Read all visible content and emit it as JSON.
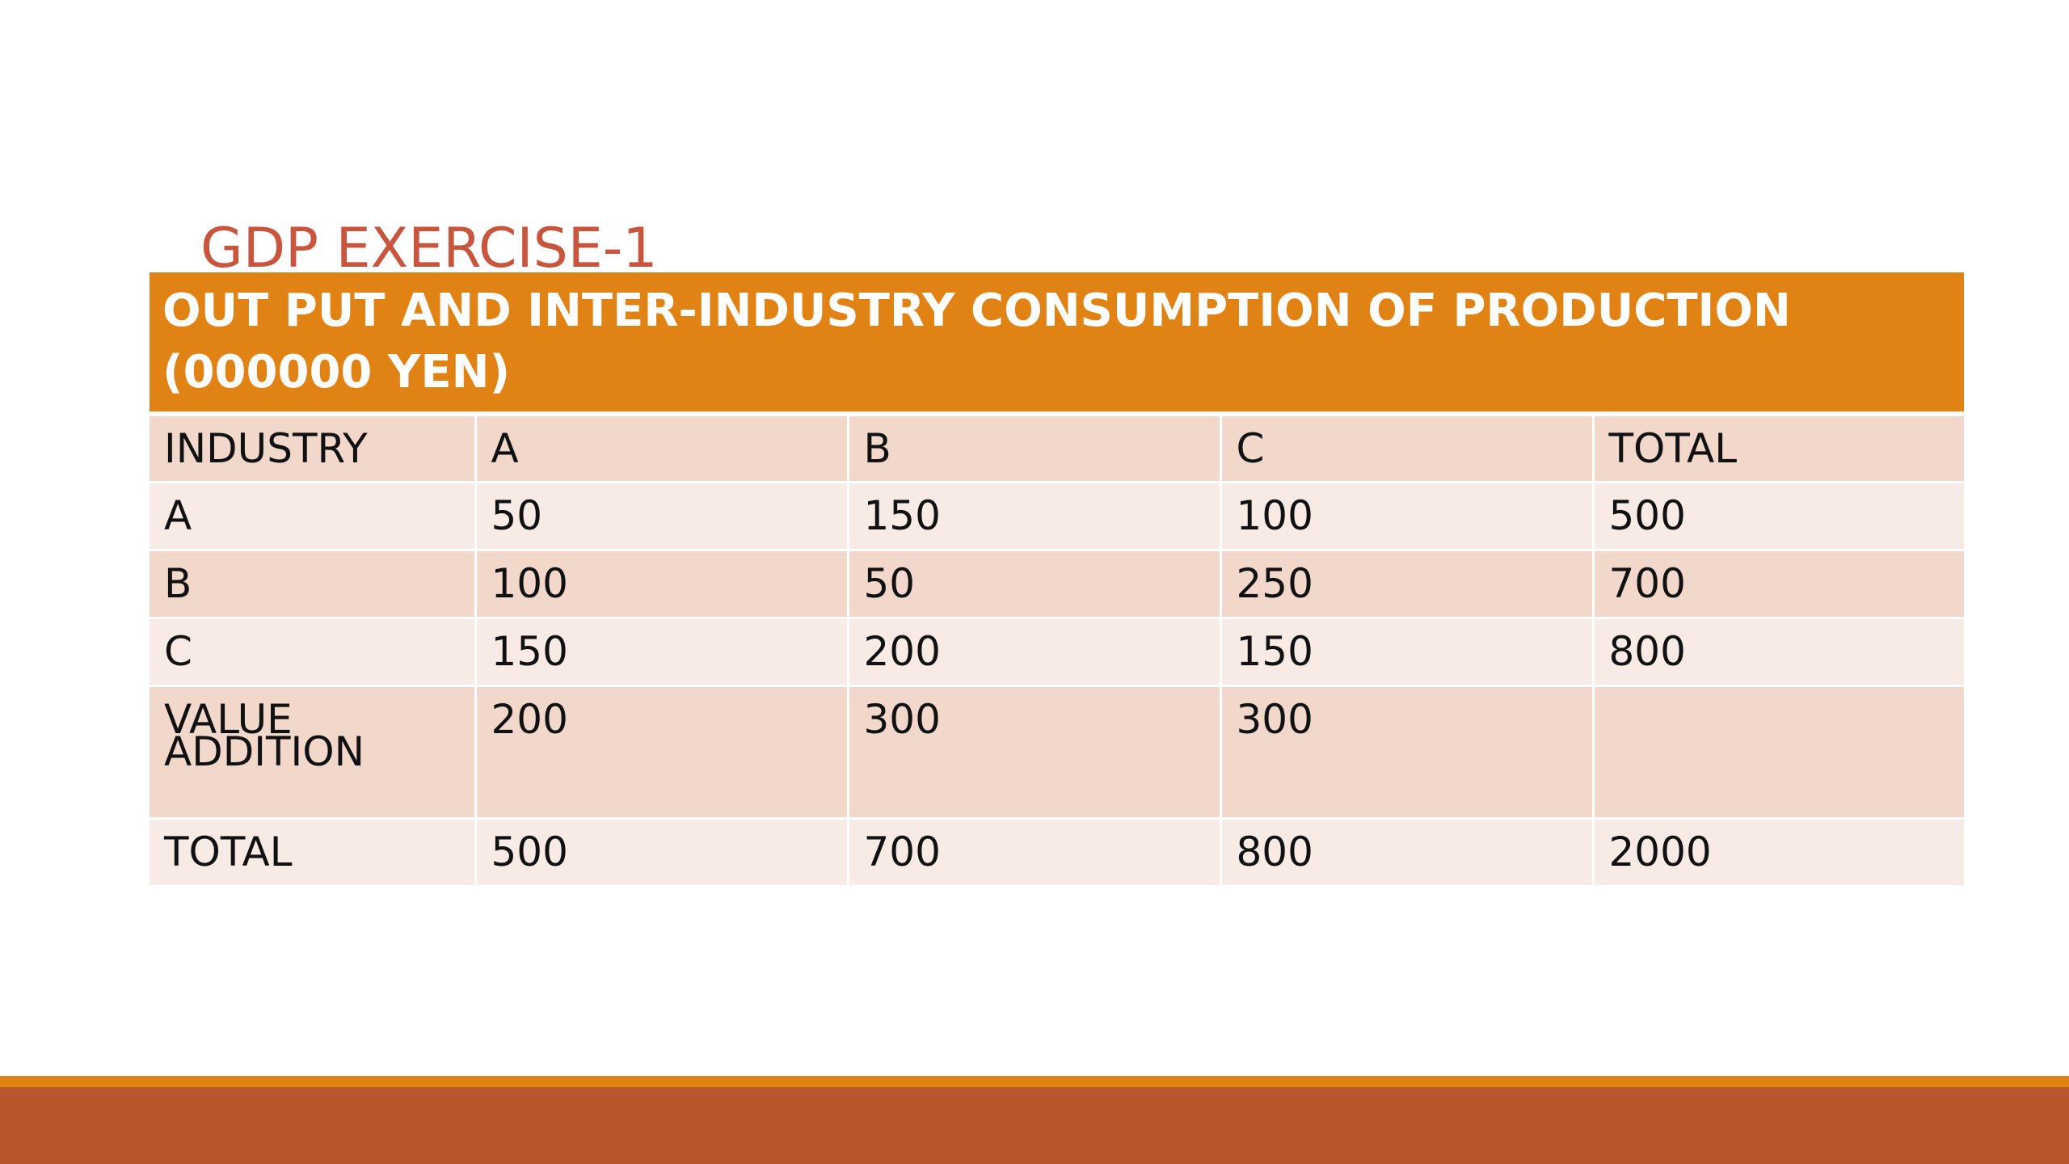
{
  "slide": {
    "title": "GDP EXERCISE-1"
  },
  "table": {
    "caption": "OUT PUT AND INTER-INDUSTRY CONSUMPTION OF PRODUCTION (000000 YEN)",
    "columns": [
      "INDUSTRY",
      "A",
      "B",
      "C",
      "TOTAL"
    ],
    "rows": [
      [
        "A",
        "50",
        "150",
        "100",
        "500"
      ],
      [
        "B",
        "100",
        "50",
        "250",
        "700"
      ],
      [
        "C",
        "150",
        "200",
        "150",
        "800"
      ],
      [
        "VALUE ADDITION",
        "200",
        "300",
        "300",
        ""
      ],
      [
        "TOTAL",
        "500",
        "700",
        "800",
        "2000"
      ]
    ]
  },
  "colors": {
    "title": "#c8553d",
    "header_band": "#e08214",
    "row_dark": "#f2d7cb",
    "row_light": "#f8ebe6",
    "footer_stripe": "#e08214",
    "footer_bar": "#b9562b"
  }
}
